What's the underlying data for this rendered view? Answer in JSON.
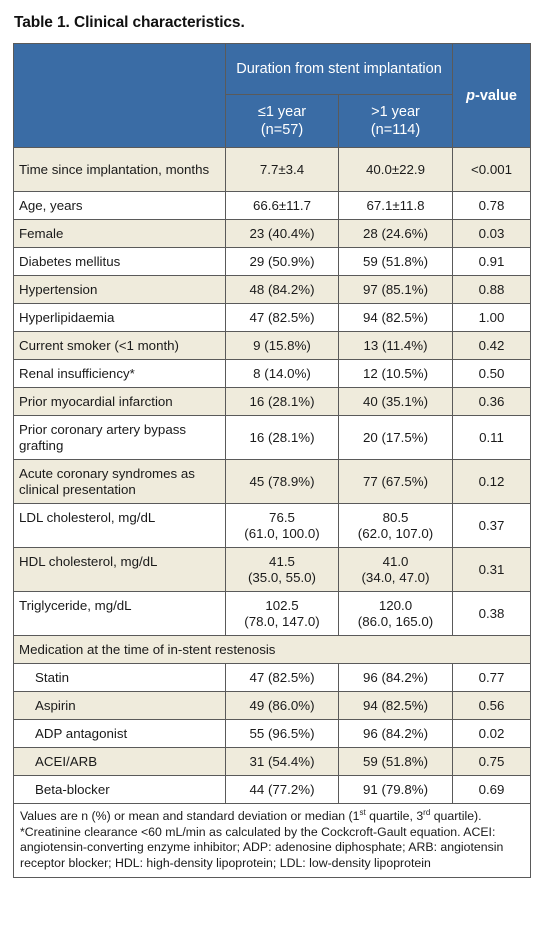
{
  "caption": "Table 1. Clinical characteristics.",
  "header": {
    "group": "Duration from stent implantation",
    "col1": {
      "line1": "≤1 year",
      "line2": "(n=57)"
    },
    "col2": {
      "line1": ">1 year",
      "line2": "(n=114)"
    },
    "pvalue": "-value",
    "pvalue_italic": "p"
  },
  "rows": [
    {
      "label": "Time since implantation, months",
      "a": "7.7±3.4",
      "b": "40.0±22.9",
      "p": "<0.001"
    },
    {
      "label": "Age, years",
      "a": "66.6±11.7",
      "b": "67.1±11.8",
      "p": "0.78"
    },
    {
      "label": "Female",
      "a": "23 (40.4%)",
      "b": "28 (24.6%)",
      "p": "0.03"
    },
    {
      "label": "Diabetes mellitus",
      "a": "29 (50.9%)",
      "b": "59 (51.8%)",
      "p": "0.91"
    },
    {
      "label": "Hypertension",
      "a": "48 (84.2%)",
      "b": "97 (85.1%)",
      "p": "0.88"
    },
    {
      "label": "Hyperlipidaemia",
      "a": "47 (82.5%)",
      "b": "94 (82.5%)",
      "p": "1.00"
    },
    {
      "label": "Current smoker (<1 month)",
      "a": "9 (15.8%)",
      "b": "13 (11.4%)",
      "p": "0.42"
    },
    {
      "label": "Renal insufficiency*",
      "a": "8 (14.0%)",
      "b": "12 (10.5%)",
      "p": "0.50"
    },
    {
      "label": "Prior myocardial infarction",
      "a": "16 (28.1%)",
      "b": "40 (35.1%)",
      "p": "0.36"
    },
    {
      "label": "Prior coronary artery bypass grafting",
      "a": "16 (28.1%)",
      "b": "20 (17.5%)",
      "p": "0.11"
    },
    {
      "label": "Acute coronary syndromes as clinical presentation",
      "a": "45 (78.9%)",
      "b": "77 (67.5%)",
      "p": "0.12"
    }
  ],
  "lipids": [
    {
      "label": "LDL cholesterol, mg/dL",
      "a1": "76.5",
      "a2": "(61.0, 100.0)",
      "b1": "80.5",
      "b2": "(62.0, 107.0)",
      "p": "0.37"
    },
    {
      "label": "HDL cholesterol, mg/dL",
      "a1": "41.5",
      "a2": "(35.0, 55.0)",
      "b1": "41.0",
      "b2": "(34.0, 47.0)",
      "p": "0.31"
    },
    {
      "label": "Triglyceride, mg/dL",
      "a1": "102.5",
      "a2": "(78.0, 147.0)",
      "b1": "120.0",
      "b2": "(86.0, 165.0)",
      "p": "0.38"
    }
  ],
  "medication_header": "Medication at the time of in-stent restenosis",
  "medications": [
    {
      "label": "Statin",
      "a": "47 (82.5%)",
      "b": "96 (84.2%)",
      "p": "0.77"
    },
    {
      "label": "Aspirin",
      "a": "49 (86.0%)",
      "b": "94 (82.5%)",
      "p": "0.56"
    },
    {
      "label": "ADP antagonist",
      "a": "55 (96.5%)",
      "b": "96 (84.2%)",
      "p": "0.02"
    },
    {
      "label": "ACEI/ARB",
      "a": "31 (54.4%)",
      "b": "59 (51.8%)",
      "p": "0.75"
    },
    {
      "label": "Beta-blocker",
      "a": "44 (77.2%)",
      "b": "91 (79.8%)",
      "p": "0.69"
    }
  ],
  "footnote": {
    "part1": "Values are n (%) or mean and standard deviation or median (1",
    "sup1": "st",
    "part2": " quartile, 3",
    "sup2": "rd",
    "part3": " quartile). *Creatinine clearance <60 mL/min as calculated by the Cockcroft-Gault equation. ACEI: angiotensin-converting enzyme inhibitor; ADP: adenosine diphosphate; ARB: angiotensin receptor blocker; HDL: high-density lipoprotein; LDL: low-density lipoprotein"
  },
  "colors": {
    "header_bg": "#3a6ca5",
    "stripe_bg": "#efebdc",
    "border": "#5a5a5a"
  }
}
